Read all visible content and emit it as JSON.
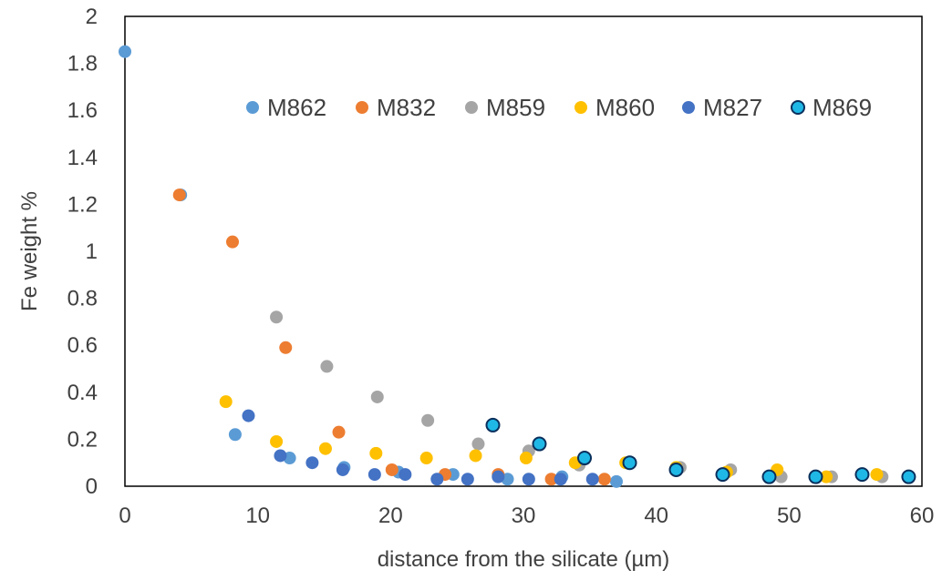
{
  "chart_data": {
    "type": "scatter",
    "xlabel": "distance from the silicate (µm)",
    "ylabel": "Fe weight %",
    "xlim": [
      0,
      60
    ],
    "ylim": [
      0,
      2
    ],
    "x_ticks": [
      "0",
      "10",
      "20",
      "30",
      "40",
      "50",
      "60"
    ],
    "y_ticks": [
      "0",
      "0.2",
      "0.4",
      "0.6",
      "0.8",
      "1",
      "1.2",
      "1.4",
      "1.6",
      "1.8",
      "2"
    ],
    "grid": false,
    "legend_position": "top-right",
    "series": [
      {
        "name": "M862",
        "color": "#5B9BD5",
        "outline": "none",
        "points": [
          [
            0,
            1.85
          ],
          [
            4.2,
            1.24
          ],
          [
            8.3,
            0.22
          ],
          [
            12.4,
            0.12
          ],
          [
            16.5,
            0.08
          ],
          [
            20.6,
            0.06
          ],
          [
            24.7,
            0.05
          ],
          [
            28.8,
            0.03
          ],
          [
            32.9,
            0.04
          ],
          [
            37,
            0.02
          ]
        ]
      },
      {
        "name": "M832",
        "color": "#ED7D31",
        "outline": "none",
        "points": [
          [
            4.1,
            1.24
          ],
          [
            8.1,
            1.04
          ],
          [
            12.1,
            0.59
          ],
          [
            16.1,
            0.23
          ],
          [
            20.1,
            0.07
          ],
          [
            24.1,
            0.05
          ],
          [
            28.1,
            0.05
          ],
          [
            32.1,
            0.03
          ],
          [
            36.1,
            0.03
          ]
        ]
      },
      {
        "name": "M859",
        "color": "#A5A5A5",
        "outline": "none",
        "points": [
          [
            11.4,
            0.72
          ],
          [
            15.2,
            0.51
          ],
          [
            19,
            0.38
          ],
          [
            22.8,
            0.28
          ],
          [
            26.6,
            0.18
          ],
          [
            30.4,
            0.15
          ],
          [
            34.2,
            0.09
          ],
          [
            38,
            0.1
          ],
          [
            41.8,
            0.08
          ],
          [
            45.6,
            0.07
          ],
          [
            49.4,
            0.04
          ],
          [
            53.2,
            0.04
          ],
          [
            57,
            0.04
          ]
        ]
      },
      {
        "name": "M860",
        "color": "#FFC000",
        "outline": "none",
        "points": [
          [
            7.6,
            0.36
          ],
          [
            11.4,
            0.19
          ],
          [
            15.1,
            0.16
          ],
          [
            18.9,
            0.14
          ],
          [
            22.7,
            0.12
          ],
          [
            26.4,
            0.13
          ],
          [
            30.2,
            0.12
          ],
          [
            33.9,
            0.1
          ],
          [
            37.7,
            0.1
          ],
          [
            41.5,
            0.08
          ],
          [
            45.3,
            0.06
          ],
          [
            49.1,
            0.07
          ],
          [
            52.8,
            0.04
          ],
          [
            56.6,
            0.05
          ]
        ]
      },
      {
        "name": "M827",
        "color": "#4472C4",
        "outline": "none",
        "points": [
          [
            9.3,
            0.3
          ],
          [
            11.7,
            0.13
          ],
          [
            14.1,
            0.1
          ],
          [
            16.4,
            0.07
          ],
          [
            18.8,
            0.05
          ],
          [
            21.1,
            0.05
          ],
          [
            23.5,
            0.03
          ],
          [
            25.8,
            0.03
          ],
          [
            28.1,
            0.04
          ],
          [
            30.4,
            0.03
          ],
          [
            32.8,
            0.03
          ],
          [
            35.2,
            0.03
          ]
        ]
      },
      {
        "name": "M869",
        "color": "#1FB8E6",
        "outline": "#0A2F5C",
        "points": [
          [
            27.7,
            0.26
          ],
          [
            31.2,
            0.18
          ],
          [
            34.6,
            0.12
          ],
          [
            38,
            0.1
          ],
          [
            41.5,
            0.07
          ],
          [
            45,
            0.05
          ],
          [
            48.5,
            0.04
          ],
          [
            52,
            0.04
          ],
          [
            55.5,
            0.05
          ],
          [
            59,
            0.04
          ]
        ]
      }
    ]
  }
}
